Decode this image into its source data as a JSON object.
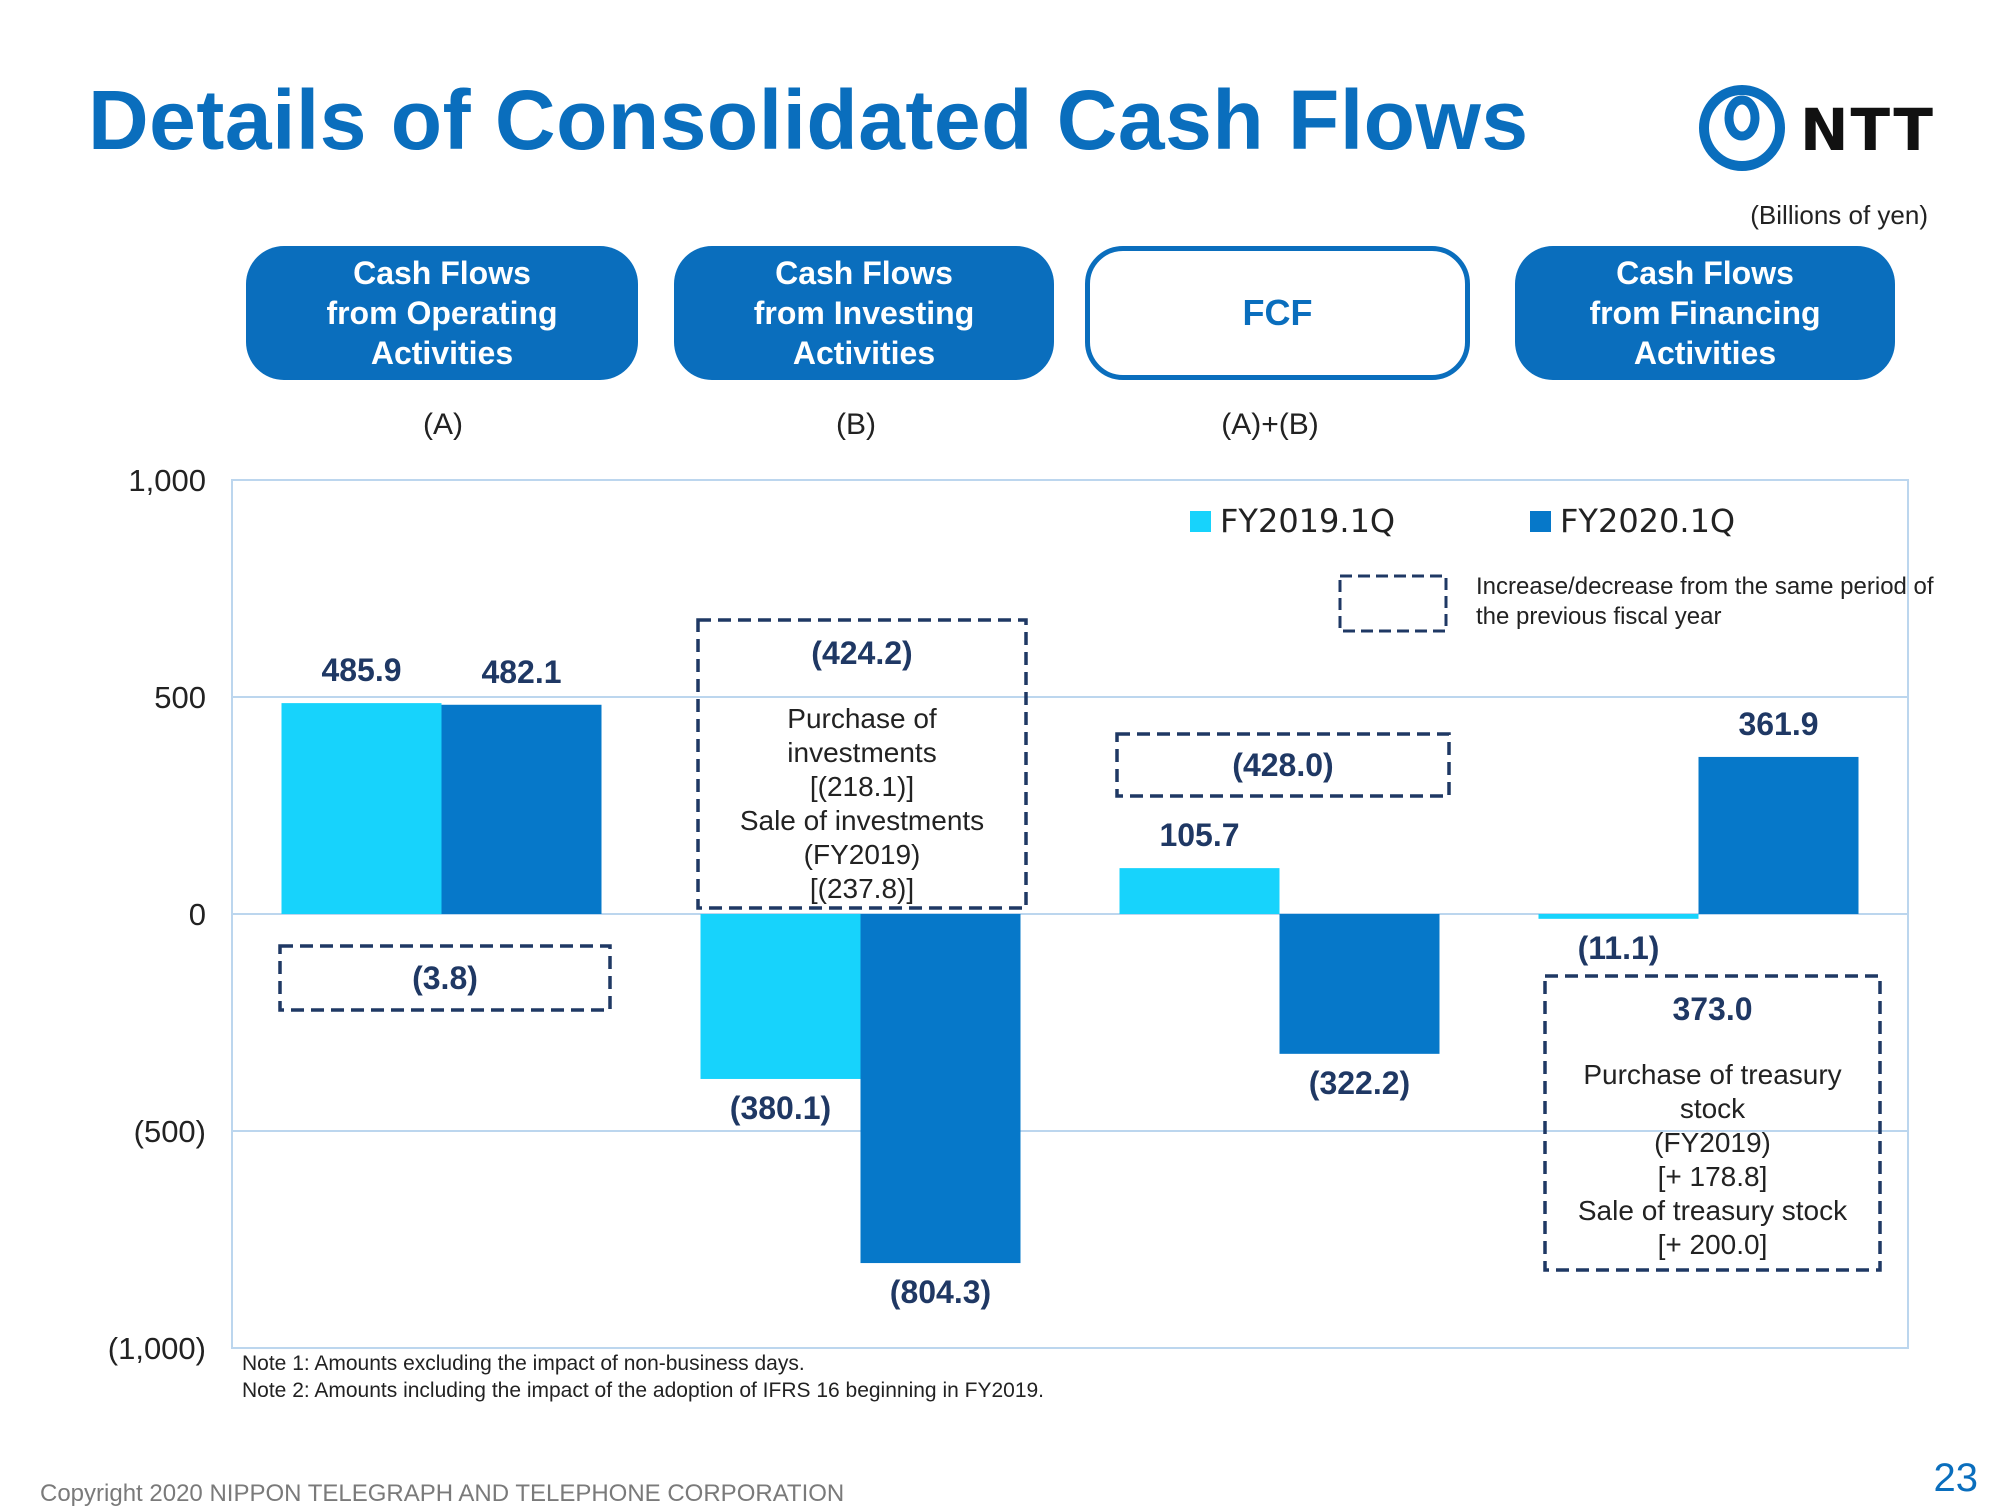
{
  "title": "Details of Consolidated Cash Flows",
  "logo": {
    "text": "NTT",
    "icon": "ntt-loop-logo-icon"
  },
  "units": "(Billions of yen)",
  "colors": {
    "brand": "#0a6ebd",
    "fy2019": "#17d3fc",
    "fy2020": "#0678c9",
    "annotation": "#1f3864"
  },
  "categories": [
    {
      "label": "Cash Flows\nfrom Operating\nActivities",
      "formula": "(A)",
      "style": "filled"
    },
    {
      "label": "Cash Flows\nfrom Investing\nActivities",
      "formula": "(B)",
      "style": "filled"
    },
    {
      "label": "FCF",
      "formula": "(A)+(B)",
      "style": "outline"
    },
    {
      "label": "Cash Flows\nfrom Financing\nActivities",
      "formula": "",
      "style": "filled"
    }
  ],
  "chart_data": {
    "type": "bar",
    "categories": [
      "Cash Flows from Operating Activities",
      "Cash Flows from Investing Activities",
      "FCF",
      "Cash Flows from Financing Activities"
    ],
    "series": [
      {
        "name": "FY2019.1Q",
        "values": [
          485.9,
          -380.1,
          105.7,
          -11.1
        ],
        "labels": [
          "485.9",
          "(380.1)",
          "105.7",
          "(11.1)"
        ]
      },
      {
        "name": "FY2020.1Q",
        "values": [
          482.1,
          -804.3,
          -322.2,
          361.9
        ],
        "labels": [
          "482.1",
          "(804.3)",
          "(322.2)",
          "361.9"
        ]
      }
    ],
    "ylim": [
      -1000,
      1000
    ],
    "yticks": [
      1000,
      500,
      0,
      -500,
      -1000
    ],
    "ytick_labels": [
      "1,000",
      "500",
      "0",
      "(500)",
      "(1,000)"
    ],
    "grid": true,
    "legend_position": "top-right",
    "legend_note": "Increase/decrease from the same period of the previous fiscal year",
    "changes": [
      {
        "category": 0,
        "value": "(3.8)",
        "details": []
      },
      {
        "category": 1,
        "value": "(424.2)",
        "details": [
          "Purchase of",
          "investments",
          "[(218.1)]",
          "Sale of investments",
          "(FY2019)",
          "[(237.8)]"
        ]
      },
      {
        "category": 2,
        "value": "(428.0)",
        "details": []
      },
      {
        "category": 3,
        "value": "373.0",
        "details": [
          "Purchase of treasury",
          "stock",
          "(FY2019)",
          "[+ 178.8]",
          "Sale of treasury stock",
          "[+ 200.0]"
        ]
      }
    ]
  },
  "notes": [
    "Note 1: Amounts  excluding  the impact of non-business  days.",
    "Note 2: Amounts  including  the impact of the adoption of IFRS 16 beginning  in FY2019."
  ],
  "copyright": "Copyright 2020 NIPPON TELEGRAPH AND TELEPHONE CORPORATION",
  "page_number": "23"
}
